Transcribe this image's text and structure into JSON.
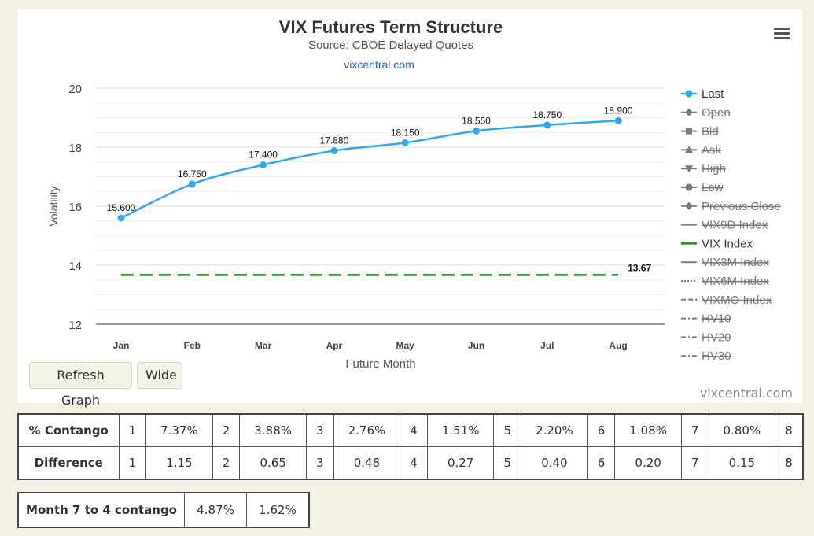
{
  "chart": {
    "title": "VIX Futures Term Structure",
    "subtitle": "Source: CBOE Delayed Quotes",
    "link_text": "vixcentral.com",
    "credit": "vixcentral.com",
    "refresh_label": "Refresh Graph",
    "wide_label": "Wide"
  },
  "chart_data": {
    "type": "line",
    "xlabel": "Future Month",
    "ylabel": "Volatility",
    "categories": [
      "Jan",
      "Feb",
      "Mar",
      "Apr",
      "May",
      "Jun",
      "Jul",
      "Aug"
    ],
    "ylim": [
      12,
      20
    ],
    "yticks": [
      12,
      14,
      16,
      18,
      20
    ],
    "grid": true,
    "legend_position": "right",
    "series": [
      {
        "name": "Last",
        "values": [
          15.6,
          16.75,
          17.4,
          17.88,
          18.15,
          18.55,
          18.75,
          18.9
        ],
        "labels": [
          "15.600",
          "16.750",
          "17.400",
          "17.880",
          "18.150",
          "18.550",
          "18.750",
          "18.900"
        ],
        "color": "#2fa8ee",
        "marker": "circle"
      },
      {
        "name": "VIX Index",
        "values": [
          13.67,
          13.67,
          13.67,
          13.67,
          13.67,
          13.67,
          13.67,
          13.67
        ],
        "end_label": "13.67",
        "color": "#238823",
        "dash": "dashed"
      }
    ],
    "legend": [
      {
        "name": "Last",
        "active": true,
        "symbol": "circle",
        "color": "#2fa8ee"
      },
      {
        "name": "Open",
        "active": false,
        "symbol": "diamond"
      },
      {
        "name": "Bid",
        "active": false,
        "symbol": "square"
      },
      {
        "name": "Ask",
        "active": false,
        "symbol": "triangle"
      },
      {
        "name": "High",
        "active": false,
        "symbol": "triangle-down"
      },
      {
        "name": "Low",
        "active": false,
        "symbol": "circle"
      },
      {
        "name": "Previous Close",
        "active": false,
        "symbol": "diamond"
      },
      {
        "name": "VIX9D Index",
        "active": false,
        "symbol": "solid"
      },
      {
        "name": "VIX Index",
        "active": true,
        "symbol": "solid",
        "color": "#238823"
      },
      {
        "name": "VIX3M Index",
        "active": false,
        "symbol": "solid"
      },
      {
        "name": "VIX6M Index",
        "active": false,
        "symbol": "dotted"
      },
      {
        "name": "VIXMO Index",
        "active": false,
        "symbol": "dashed"
      },
      {
        "name": "HV10",
        "active": false,
        "symbol": "dashdot"
      },
      {
        "name": "HV20",
        "active": false,
        "symbol": "dashdot"
      },
      {
        "name": "HV30",
        "active": false,
        "symbol": "dashdot"
      }
    ]
  },
  "contango_table": {
    "rows": [
      {
        "header": "% Contango",
        "cells": [
          "1",
          "7.37%",
          "2",
          "3.88%",
          "3",
          "2.76%",
          "4",
          "1.51%",
          "5",
          "2.20%",
          "6",
          "1.08%",
          "7",
          "0.80%",
          "8"
        ]
      },
      {
        "header": "Difference",
        "cells": [
          "1",
          "1.15",
          "2",
          "0.65",
          "3",
          "0.48",
          "4",
          "0.27",
          "5",
          "0.40",
          "6",
          "0.20",
          "7",
          "0.15",
          "8"
        ]
      }
    ]
  },
  "month7_table": {
    "header": "Month 7 to 4 contango",
    "values": [
      "4.87%",
      "1.62%"
    ]
  }
}
